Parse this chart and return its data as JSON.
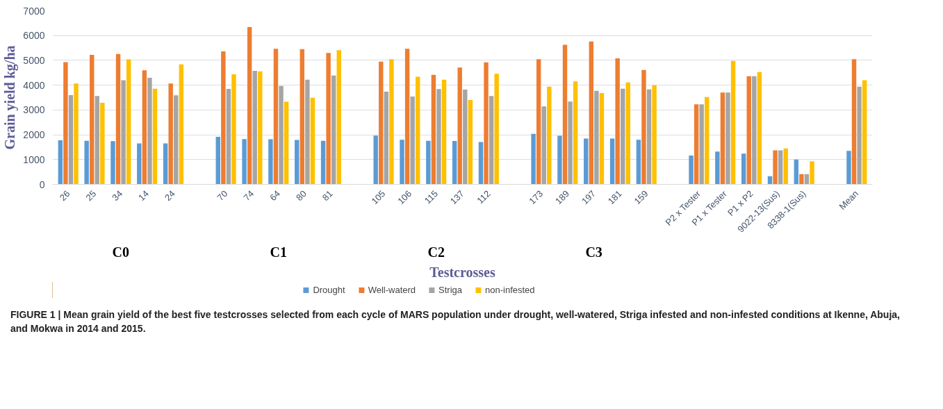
{
  "chart_data": {
    "type": "bar",
    "xlabel": "Testcrosses",
    "ylabel": "Grain yield kg/ha",
    "categories": [
      "26",
      "25",
      "34",
      "14",
      "24",
      null,
      "70",
      "74",
      "64",
      "80",
      "81",
      null,
      "105",
      "106",
      "115",
      "137",
      "112",
      null,
      "173",
      "189",
      "197",
      "181",
      "159",
      null,
      "P2 x Tester",
      "P1 x Tester",
      "P1 x P2",
      "9022-13(Sus)",
      "8338-1(Sus)",
      null,
      "Mean"
    ],
    "series": [
      {
        "name": "Drought",
        "color": "#5b9bd5",
        "values": [
          1780,
          1760,
          1740,
          1650,
          1650,
          null,
          1920,
          1830,
          1820,
          1790,
          1760,
          null,
          1970,
          1800,
          1760,
          1750,
          1710,
          null,
          2040,
          1960,
          1850,
          1850,
          1800,
          null,
          1160,
          1320,
          1240,
          330,
          1000,
          null,
          1350
        ]
      },
      {
        "name": "Well-waterd",
        "color": "#ed7d31",
        "values": [
          4930,
          5220,
          5260,
          4600,
          4070,
          null,
          5360,
          6340,
          5470,
          5450,
          5300,
          null,
          4950,
          5470,
          4420,
          4710,
          4920,
          null,
          5050,
          5630,
          5760,
          5080,
          4610,
          null,
          3230,
          3700,
          4360,
          1370,
          410,
          null,
          5050
        ]
      },
      {
        "name": "Striga",
        "color": "#a5a5a5",
        "values": [
          3600,
          3560,
          4200,
          4300,
          3590,
          null,
          3850,
          4580,
          3970,
          4220,
          4390,
          null,
          3740,
          3540,
          3840,
          3820,
          3560,
          null,
          3140,
          3340,
          3770,
          3860,
          3830,
          null,
          3230,
          3700,
          4360,
          1370,
          410,
          null,
          3940
        ]
      },
      {
        "name": "non-infested",
        "color": "#ffc000",
        "values": [
          4070,
          3290,
          5040,
          3860,
          4840,
          null,
          4440,
          4560,
          3330,
          3490,
          5410,
          null,
          5050,
          4340,
          4220,
          3400,
          4460,
          null,
          3940,
          4150,
          3680,
          4110,
          4000,
          null,
          3520,
          4980,
          4530,
          1450,
          930,
          null,
          4200
        ]
      }
    ],
    "ylim": [
      0,
      7000
    ],
    "yticks": [
      0,
      1000,
      2000,
      3000,
      4000,
      5000,
      6000,
      7000
    ],
    "grid": "y",
    "legend": "bottom",
    "annotations": [
      "C0",
      "C1",
      "C2",
      "C3",
      "FIGURE 1 | Mean grain yield of the best five testcrosses selected from each cycle of MARS population under drought, well-watered, Striga infested and non-infested conditions at Ikenne, Abuja, and Mokwa in 2014 and 2015."
    ]
  }
}
